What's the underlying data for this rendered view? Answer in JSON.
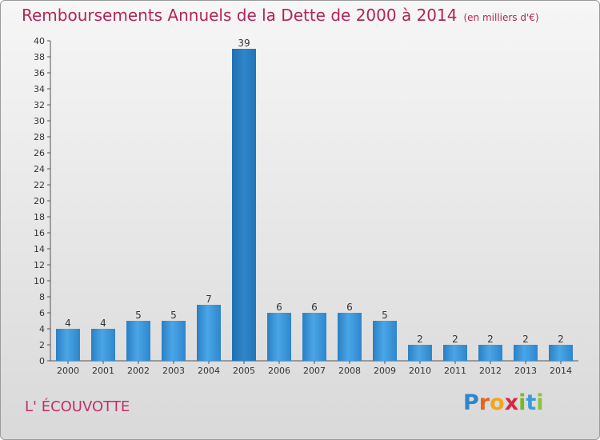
{
  "chart_data": {
    "type": "bar",
    "title": "Remboursements Annuels de la Dette de 2000 à 2014",
    "subtitle": "(en milliers d'€)",
    "categories": [
      "2000",
      "2001",
      "2002",
      "2003",
      "2004",
      "2005",
      "2006",
      "2007",
      "2008",
      "2009",
      "2010",
      "2011",
      "2012",
      "2013",
      "2014"
    ],
    "values": [
      4,
      4,
      5,
      5,
      7,
      39,
      6,
      6,
      6,
      5,
      2,
      2,
      2,
      2,
      2
    ],
    "ylim": [
      0,
      40
    ],
    "ytick_step": 2,
    "xlabel": "",
    "ylabel": "",
    "grid": false,
    "bar_color": "#3a93d6"
  },
  "commune": "L' ÉCOUVOTTE",
  "logo": {
    "letters": [
      "P",
      "r",
      "o",
      "x",
      "i",
      "t",
      "i"
    ],
    "colors": [
      "#2e86c8",
      "#e3641e",
      "#f2a61c",
      "#d8283f",
      "#7cb52b",
      "#3a9bd8",
      "#8fc13b"
    ]
  }
}
